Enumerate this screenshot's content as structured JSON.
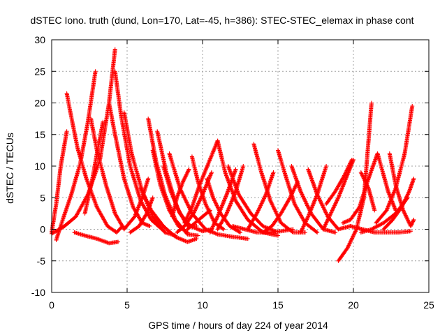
{
  "chart_data": {
    "type": "scatter",
    "title": "dSTEC Iono. truth (dund, Lon=170, Lat=-45, h=386): STEC-STEC_elemax in phase cont",
    "xlabel": "GPS time / hours of day 224 of year 2014",
    "ylabel": "dSTEC  / TECUs",
    "xlim": [
      0,
      25
    ],
    "ylim": [
      -10,
      30
    ],
    "x_ticks": [
      0,
      5,
      10,
      15,
      20,
      25
    ],
    "y_ticks": [
      -10,
      -5,
      0,
      5,
      10,
      15,
      20,
      25,
      30
    ],
    "grid": true,
    "marker": "+",
    "color": "#ff0000",
    "series": [
      {
        "x": [
          0.0,
          0.3,
          0.6,
          1.0
        ],
        "y": [
          -0.5,
          4.0,
          10.0,
          15.5
        ]
      },
      {
        "x": [
          0.3,
          0.8,
          1.3,
          1.9,
          2.4,
          2.9
        ],
        "y": [
          -1.7,
          2.0,
          5.5,
          10.5,
          17.0,
          25.0
        ]
      },
      {
        "x": [
          0.0,
          0.8,
          1.6,
          2.4,
          3.2,
          3.8,
          4.2
        ],
        "y": [
          -0.7,
          0.4,
          2.0,
          5.5,
          11.0,
          20.0,
          28.5
        ]
      },
      {
        "x": [
          1.0,
          1.2,
          1.7,
          2.3,
          3.0,
          3.7,
          4.3,
          4.7
        ],
        "y": [
          21.5,
          19.0,
          13.0,
          8.0,
          3.5,
          0.5,
          -0.5,
          0.5
        ]
      },
      {
        "x": [
          2.2,
          2.7,
          3.0,
          3.4
        ],
        "y": [
          2.5,
          8.0,
          12.0,
          17.0
        ]
      },
      {
        "x": [
          2.6,
          3.0,
          3.6,
          4.2,
          4.8,
          5.5,
          6.0,
          6.4
        ],
        "y": [
          17.5,
          12.5,
          7.0,
          2.5,
          0.0,
          2.0,
          5.0,
          8.0
        ]
      },
      {
        "x": [
          1.5,
          2.2,
          3.0,
          3.8,
          4.4
        ],
        "y": [
          -0.5,
          -1.0,
          -1.5,
          -2.2,
          -2.0
        ]
      },
      {
        "x": [
          3.8,
          4.2,
          4.8,
          5.4,
          6.0,
          6.5
        ],
        "y": [
          20.0,
          15.0,
          8.0,
          3.5,
          1.0,
          0.5
        ]
      },
      {
        "x": [
          4.2,
          4.6,
          5.2,
          5.9,
          6.6,
          7.3
        ],
        "y": [
          25.0,
          18.0,
          10.0,
          4.5,
          1.5,
          0.0
        ]
      },
      {
        "x": [
          4.8,
          5.3,
          6.0,
          6.7,
          7.5,
          8.2
        ],
        "y": [
          18.5,
          12.0,
          6.0,
          2.0,
          -0.5,
          -1.0
        ]
      },
      {
        "x": [
          5.2,
          5.8,
          6.3,
          6.7
        ],
        "y": [
          -0.5,
          0.5,
          2.5,
          5.0
        ]
      },
      {
        "x": [
          5.9,
          6.6,
          7.4,
          8.2,
          9.0,
          9.6
        ],
        "y": [
          6.5,
          3.0,
          0.5,
          -1.2,
          -2.0,
          -1.5
        ]
      },
      {
        "x": [
          6.4,
          6.9,
          7.5,
          8.2,
          9.0,
          9.7
        ],
        "y": [
          17.5,
          11.0,
          5.5,
          1.5,
          -0.8,
          -1.0
        ]
      },
      {
        "x": [
          6.7,
          7.2,
          7.8,
          8.4,
          9.0
        ],
        "y": [
          12.5,
          7.0,
          3.0,
          0.5,
          -0.5
        ]
      },
      {
        "x": [
          7.0,
          7.6,
          8.3,
          9.0,
          9.6
        ],
        "y": [
          15.5,
          9.0,
          3.5,
          0.5,
          0.5
        ]
      },
      {
        "x": [
          7.4,
          7.9,
          8.5,
          9.2,
          10.0,
          10.6
        ],
        "y": [
          10.0,
          6.0,
          2.5,
          0.5,
          -0.3,
          0.0
        ]
      },
      {
        "x": [
          7.8,
          8.5,
          9.3,
          10.2,
          11.0,
          12.0,
          13.0
        ],
        "y": [
          12.0,
          6.5,
          2.5,
          0.0,
          -0.8,
          -1.2,
          -1.5
        ]
      },
      {
        "x": [
          8.0,
          8.3,
          8.7,
          9.1
        ],
        "y": [
          2.0,
          5.0,
          7.5,
          9.5
        ]
      },
      {
        "x": [
          8.3,
          8.8,
          9.4,
          10.0,
          10.6
        ],
        "y": [
          -0.5,
          0.5,
          2.5,
          5.5,
          9.0
        ]
      },
      {
        "x": [
          8.8,
          9.3,
          9.8,
          10.4,
          11.0
        ],
        "y": [
          1.0,
          3.5,
          7.0,
          10.5,
          14.0
        ]
      },
      {
        "x": [
          9.0,
          9.5,
          10.0,
          10.5
        ],
        "y": [
          0.0,
          1.0,
          2.0,
          3.0
        ]
      },
      {
        "x": [
          9.3,
          9.7,
          10.2,
          10.8,
          11.4
        ],
        "y": [
          11.5,
          7.5,
          4.0,
          1.0,
          0.0
        ]
      },
      {
        "x": [
          10.3,
          10.7,
          11.2,
          11.8,
          12.5
        ],
        "y": [
          8.0,
          5.0,
          2.5,
          0.5,
          -0.5
        ]
      },
      {
        "x": [
          11.0,
          11.5,
          12.2,
          13.0,
          14.0,
          15.0
        ],
        "y": [
          14.0,
          9.0,
          4.5,
          1.5,
          -0.5,
          -1.0
        ]
      },
      {
        "x": [
          10.5,
          11.0,
          11.6,
          12.2
        ],
        "y": [
          -0.5,
          2.0,
          5.5,
          9.5
        ]
      },
      {
        "x": [
          11.0,
          11.6,
          12.2,
          12.7
        ],
        "y": [
          0.0,
          2.5,
          6.0,
          10.0
        ]
      },
      {
        "x": [
          11.7,
          12.4,
          13.2,
          14.0,
          14.8
        ],
        "y": [
          10.0,
          5.5,
          2.5,
          0.5,
          -0.3
        ]
      },
      {
        "x": [
          12.0,
          12.8,
          13.6,
          14.4,
          15.2,
          16.0
        ],
        "y": [
          0.5,
          0.0,
          -0.5,
          -0.5,
          -0.3,
          0.0
        ]
      },
      {
        "x": [
          13.4,
          13.9,
          14.5,
          15.2,
          16.0,
          16.8
        ],
        "y": [
          13.5,
          9.0,
          4.5,
          1.0,
          -0.5,
          -0.5
        ]
      },
      {
        "x": [
          13.0,
          13.6,
          14.2,
          14.7
        ],
        "y": [
          0.0,
          2.5,
          5.5,
          9.0
        ]
      },
      {
        "x": [
          15.0,
          15.5,
          16.1,
          16.8,
          17.6
        ],
        "y": [
          12.5,
          8.5,
          4.0,
          1.0,
          -0.5
        ]
      },
      {
        "x": [
          14.0,
          14.6,
          15.2,
          15.8,
          16.3
        ],
        "y": [
          -0.5,
          0.5,
          2.5,
          5.0,
          7.5
        ]
      },
      {
        "x": [
          15.9,
          16.5,
          17.2,
          18.0,
          18.8
        ],
        "y": [
          10.0,
          6.0,
          2.5,
          0.0,
          -0.5
        ]
      },
      {
        "x": [
          16.5,
          17.0,
          17.6,
          18.2
        ],
        "y": [
          -0.5,
          2.0,
          5.5,
          10.0
        ]
      },
      {
        "x": [
          17.0,
          17.6,
          18.3,
          19.0,
          19.8
        ],
        "y": [
          9.5,
          5.5,
          2.0,
          0.0,
          0.5
        ]
      },
      {
        "x": [
          18.0,
          18.5,
          19.0,
          19.5,
          20.0
        ],
        "y": [
          0.0,
          2.5,
          5.0,
          8.0,
          11.0
        ]
      },
      {
        "x": [
          18.2,
          18.8,
          19.4,
          19.9
        ],
        "y": [
          4.0,
          6.0,
          8.5,
          11.0
        ]
      },
      {
        "x": [
          19.0,
          19.6,
          20.2,
          20.7,
          21.2
        ],
        "y": [
          -5.0,
          -3.0,
          0.0,
          5.0,
          20.0
        ]
      },
      {
        "x": [
          19.3,
          19.8,
          20.4,
          21.0,
          21.6,
          22.3,
          22.8
        ],
        "y": [
          1.0,
          1.5,
          3.5,
          8.0,
          12.0,
          6.0,
          3.0
        ]
      },
      {
        "x": [
          19.8,
          20.6,
          21.4,
          22.2,
          23.0,
          23.8
        ],
        "y": [
          0.5,
          0.0,
          -0.5,
          -0.5,
          -0.5,
          -0.3
        ]
      },
      {
        "x": [
          20.5,
          21.2,
          22.0,
          22.8,
          23.6
        ],
        "y": [
          -0.5,
          0.0,
          1.0,
          2.5,
          5.0
        ]
      },
      {
        "x": [
          21.5,
          22.2,
          22.8,
          23.4,
          23.9
        ],
        "y": [
          1.0,
          3.0,
          6.5,
          12.0,
          19.5
        ]
      },
      {
        "x": [
          22.4,
          22.8,
          23.3,
          23.8,
          24.0
        ],
        "y": [
          12.0,
          7.0,
          3.0,
          0.5,
          1.5
        ]
      },
      {
        "x": [
          22.0,
          22.6,
          23.2,
          23.7,
          24.0
        ],
        "y": [
          0.0,
          1.5,
          3.5,
          6.0,
          8.0
        ]
      },
      {
        "x": [
          20.5,
          21.0,
          21.4
        ],
        "y": [
          9.0,
          6.5,
          3.0
        ]
      }
    ]
  }
}
